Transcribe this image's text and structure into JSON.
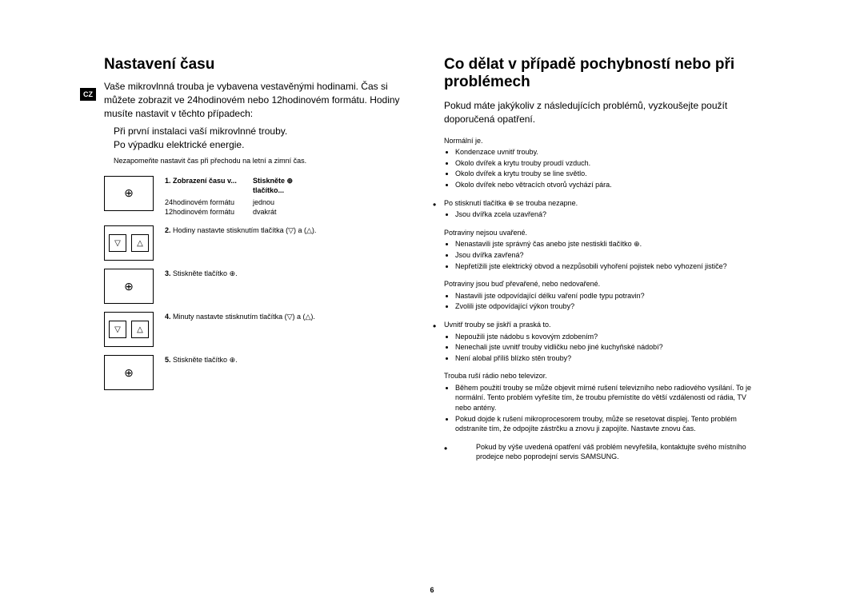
{
  "pageNumber": "6",
  "countryBadge": "CZ",
  "left": {
    "title": "Nastavení času",
    "intro": "Vaše mikrovlnná trouba je vybavena vestavěnými hodinami. Čas si můžete zobrazit ve 24hodinovém nebo 12hodinovém formátu. Hodiny musíte nastavit v těchto případech:",
    "points": [
      "Při první instalaci vaší mikrovlnné trouby.",
      "Po výpadku elektrické energie."
    ],
    "note": "Nezapomeňte nastavit čas při přechodu na letní a zimní čas.",
    "step1": {
      "num": "1.",
      "header1": "Zobrazení času v...",
      "header2": "Stiskněte ⊕ tlačítko...",
      "row1a": "24hodinovém formátu",
      "row1b": "jednou",
      "row2a": "12hodinovém formátu",
      "row2b": "dvakrát"
    },
    "step2": {
      "num": "2.",
      "text": "Hodiny nastavte stisknutím tlačítka (▽) a (△)."
    },
    "step3": {
      "num": "3.",
      "text": "Stiskněte tlačítko ⊕."
    },
    "step4": {
      "num": "4.",
      "text": "Minuty nastavte stisknutím tlačítka (▽) a (△)."
    },
    "step5": {
      "num": "5.",
      "text": "Stiskněte tlačítko ⊕."
    }
  },
  "right": {
    "title": "Co dělat v případě pochybností nebo při problémech",
    "intro": "Pokud máte jakýkoliv z následujících problémů, vyzkoušejte použít doporučená opatření.",
    "problems": [
      {
        "title": "Normální je.",
        "items": [
          "Kondenzace uvnitř trouby.",
          "Okolo dvířek a krytu trouby proudí vzduch.",
          "Okolo dvířek a krytu trouby se line světlo.",
          "Okolo dvířek nebo větracích otvorů vychází pára."
        ],
        "hasBullet": false
      },
      {
        "title": "Po stisknutí tlačítka ⊕ se trouba nezapne.",
        "items": [
          "Jsou dvířka zcela uzavřená?"
        ],
        "hasBullet": true
      },
      {
        "title": "Potraviny nejsou uvařené.",
        "items": [
          "Nenastavili jste správný čas anebo jste nestiskli tlačítko ⊕.",
          "Jsou dvířka zavřená?",
          "Nepřetížili jste elektrický obvod a nezpůsobili vyhoření pojistek nebo vyhození jističe?"
        ],
        "hasBullet": false
      },
      {
        "title": "Potraviny jsou buď převařené, nebo nedovařené.",
        "items": [
          "Nastavili jste odpovídající délku vaření podle typu potravin?",
          "Zvolili jste odpovídající výkon trouby?"
        ],
        "hasBullet": false
      },
      {
        "title": "Uvnitř trouby se jiskří a praská to.",
        "items": [
          "Nepoužili jste nádobu s kovovým zdobením?",
          "Nenechali jste uvnitř trouby vidličku nebo jiné kuchyňské nádobí?",
          "Není alobal příliš blízko stěn trouby?"
        ],
        "hasBullet": true
      },
      {
        "title": "Trouba ruší rádio nebo televizor.",
        "items": [
          "Během použití trouby se může objevit mírné rušení televizního nebo radiového vysílání. To je normální. Tento problém vyřešíte tím, že troubu přemístíte do větší vzdálenosti od rádia, TV nebo antény.",
          "Pokud dojde k rušení mikroprocesorem trouby, může se resetovat displej. Tento problém odstraníte tím, že odpojíte zástrčku a znovu ji zapojíte. Nastavte znovu čas."
        ],
        "hasBullet": false
      }
    ],
    "finalNote": "Pokud by výše uvedená opatření váš problém nevyřešila, kontaktujte svého místního prodejce nebo poprodejní servis SAMSUNG."
  }
}
